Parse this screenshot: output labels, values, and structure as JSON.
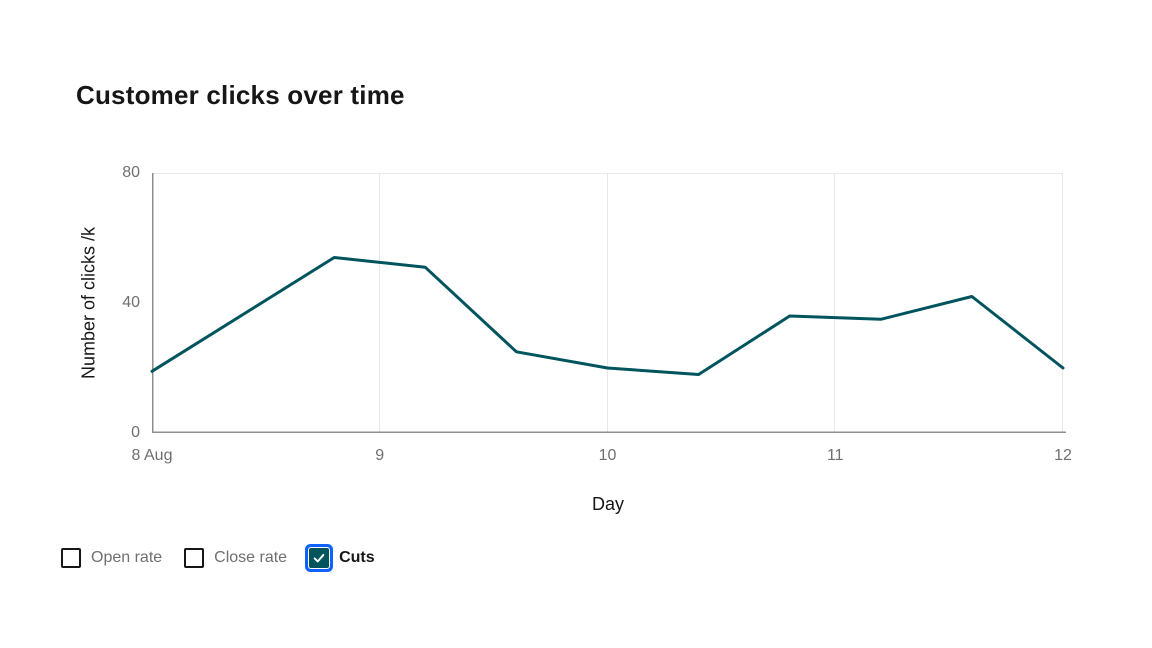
{
  "title": "Customer clicks over time",
  "chart_data": {
    "type": "line",
    "title": "Customer clicks over time",
    "xlabel": "Day",
    "ylabel": "Number of clicks /k",
    "x": [
      8,
      8.8,
      9.2,
      9.6,
      10,
      10.4,
      10.8,
      11.2,
      11.6,
      12
    ],
    "series": [
      {
        "name": "Cuts",
        "values": [
          19,
          54,
          51,
          25,
          20,
          18,
          36,
          35,
          42,
          20
        ]
      }
    ],
    "xlim": [
      8,
      12
    ],
    "ylim": [
      0,
      80
    ],
    "x_ticks": {
      "values": [
        8,
        9,
        10,
        11,
        12
      ],
      "labels": [
        "8 Aug",
        "9",
        "10",
        "11",
        "12"
      ]
    },
    "y_ticks": {
      "values": [
        0,
        40,
        80
      ],
      "labels": [
        "0",
        "40",
        "80"
      ]
    },
    "grid": {
      "vertical_at": [
        9,
        10,
        11,
        12
      ],
      "horizontal_at": [
        80
      ]
    },
    "legend_position": "bottom"
  },
  "legend": {
    "items": [
      {
        "label": "Open rate",
        "checked": false
      },
      {
        "label": "Close rate",
        "checked": false
      },
      {
        "label": "Cuts",
        "checked": true
      }
    ]
  },
  "colors": {
    "line": "#00545E",
    "focus_ring": "#0F62FE",
    "axis_line": "#8D8D8D",
    "gridline": "#E8E8E8",
    "tick_text": "#6F6F6F",
    "text": "#161616"
  }
}
